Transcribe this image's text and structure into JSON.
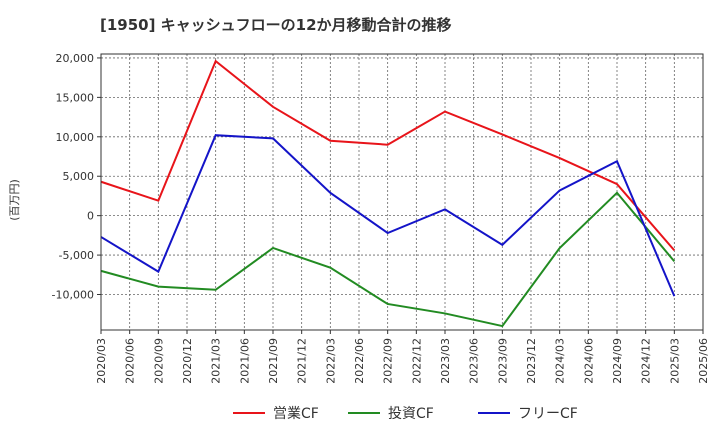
{
  "chart_data": {
    "type": "line",
    "title": "[1950]  キャッシュフローの12か月移動合計の推移",
    "ylabel": "(百万円)",
    "xlabel": "",
    "ylim": [
      -14500,
      20500
    ],
    "y_ticks": [
      20000,
      15000,
      10000,
      5000,
      0,
      -5000,
      -10000
    ],
    "y_tick_labels": [
      "20,000",
      "15,000",
      "10,000",
      "5,000",
      "0",
      "-5,000",
      "-10,000"
    ],
    "x_tick_labels": [
      "2020/03",
      "2020/06",
      "2020/09",
      "2020/12",
      "2021/03",
      "2021/06",
      "2021/09",
      "2021/12",
      "2022/03",
      "2022/06",
      "2022/09",
      "2022/12",
      "2023/03",
      "2023/06",
      "2023/09",
      "2023/12",
      "2024/03",
      "2024/06",
      "2024/09",
      "2024/12",
      "2025/03",
      "2025/06"
    ],
    "x": [
      "2020/03",
      "2020/09",
      "2021/03",
      "2021/09",
      "2022/03",
      "2022/09",
      "2023/03",
      "2023/09",
      "2024/03",
      "2024/09",
      "2025/03"
    ],
    "grid": true,
    "legend_position": "bottom",
    "series": [
      {
        "name": "営業CF",
        "color": "#e8141a",
        "values": [
          4300,
          1900,
          19600,
          13800,
          9500,
          9000,
          13200,
          10300,
          7300,
          4000,
          -4400
        ]
      },
      {
        "name": "投資CF",
        "color": "#228b22",
        "values": [
          -7000,
          -9000,
          -9400,
          -4100,
          -6600,
          -11200,
          -12400,
          -14000,
          -4100,
          2900,
          -5800
        ]
      },
      {
        "name": "フリーCF",
        "color": "#1414c8",
        "values": [
          -2700,
          -7100,
          10200,
          9800,
          2900,
          -2200,
          800,
          -3700,
          3200,
          6900,
          -10200
        ]
      }
    ]
  }
}
